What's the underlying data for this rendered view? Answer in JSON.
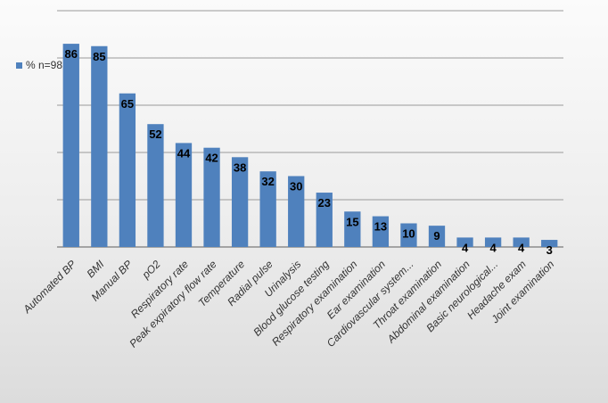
{
  "chart_data": {
    "type": "bar",
    "categories": [
      "Automated BP",
      "BMI",
      "Manual BP",
      "pO2",
      "Respiratory rate",
      "Peak expiratory flow rate",
      "Temperature",
      "Radial pulse",
      "Urinalysis",
      "Blood glucose testing",
      "Respiratory examination",
      "Ear examination",
      "Cardiovascular system...",
      "Throat examination",
      "Abdominal examination",
      "Basic neurological...",
      "Headache exam",
      "Joint examination"
    ],
    "series": [
      {
        "name": "% n=98",
        "values": [
          86,
          85,
          65,
          52,
          44,
          42,
          38,
          32,
          30,
          23,
          15,
          13,
          10,
          9,
          4,
          4,
          4,
          3
        ]
      }
    ],
    "ylim": [
      0,
      100
    ],
    "grid": true,
    "legend": "top-left",
    "bar_color": "#4f81bd"
  }
}
